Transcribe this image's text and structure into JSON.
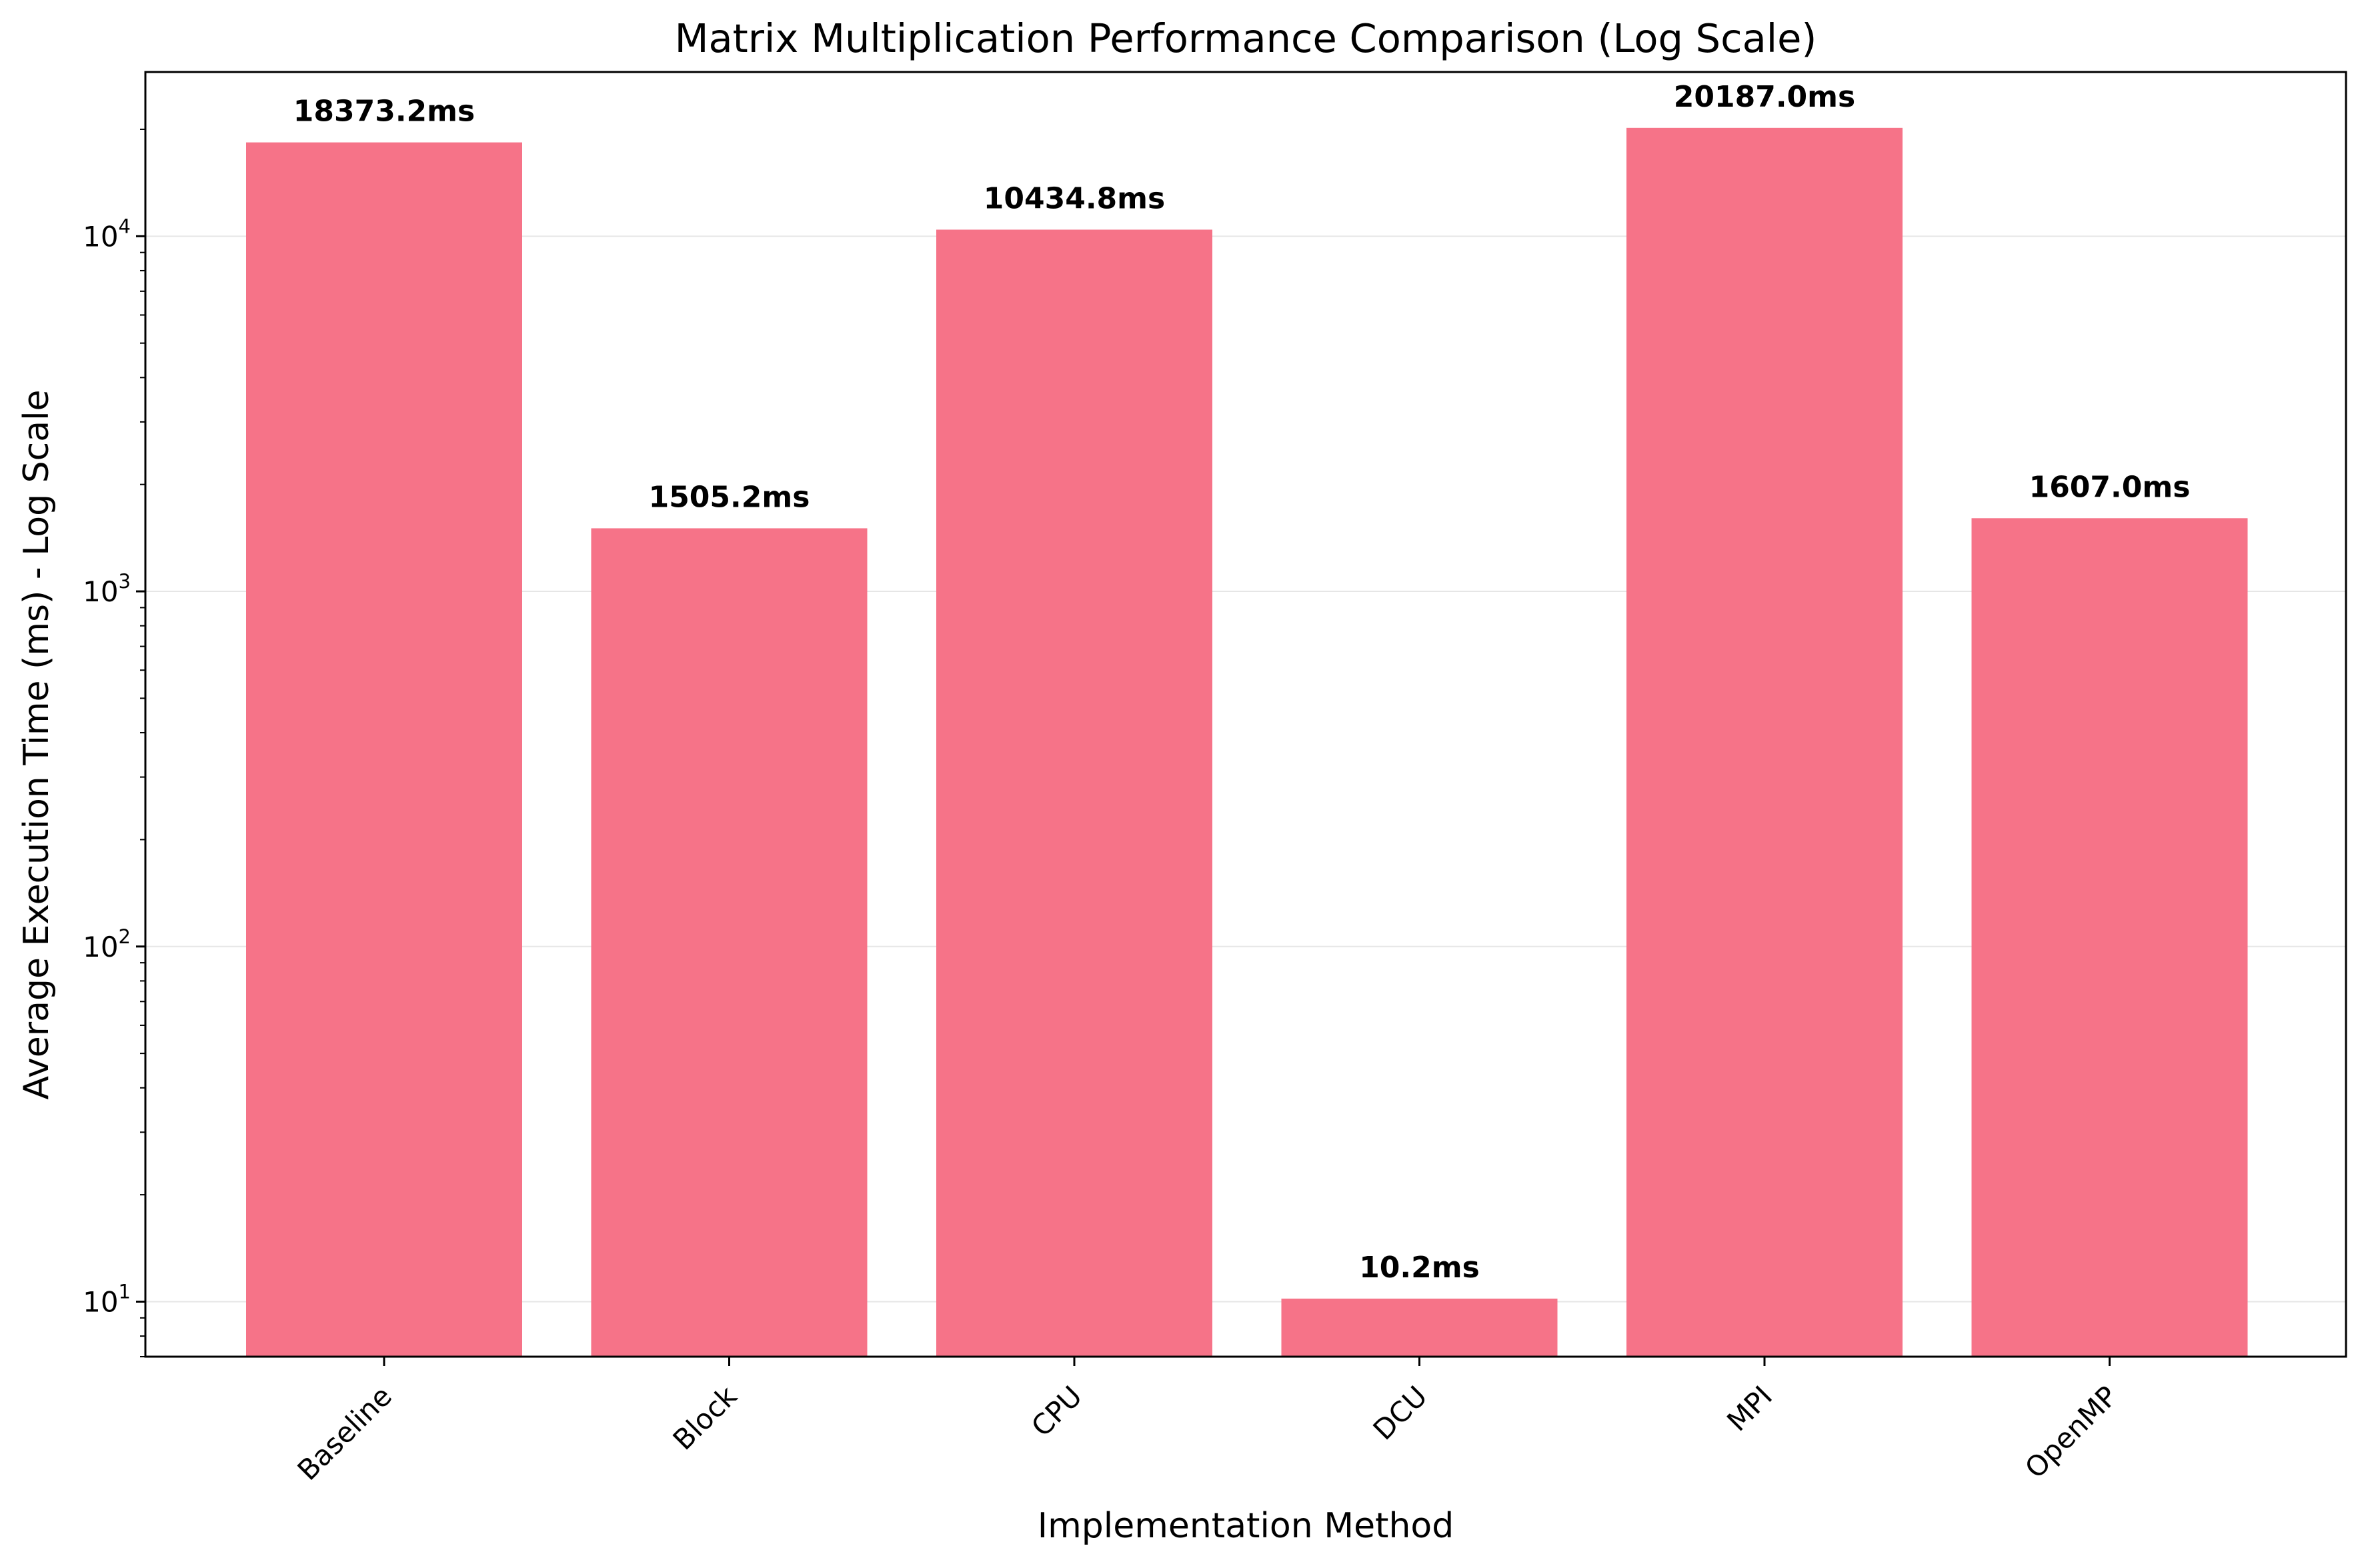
{
  "chart_data": {
    "type": "bar",
    "title": "Matrix Multiplication Performance Comparison (Log Scale)",
    "xlabel": "Implementation Method",
    "ylabel": "Average Execution Time (ms) - Log Scale",
    "yscale": "log",
    "ylim": [
      7,
      29000
    ],
    "grid": "y",
    "bar_color": "#f67388",
    "categories": [
      "Baseline",
      "Block",
      "CPU",
      "DCU",
      "MPI",
      "OpenMP"
    ],
    "values": [
      18373.2,
      1505.2,
      10434.8,
      10.2,
      20187.0,
      1607.0
    ],
    "value_labels": [
      "18373.2ms",
      "1505.2ms",
      "10434.8ms",
      "10.2ms",
      "20187.0ms",
      "1607.0ms"
    ],
    "y_major_ticks": [
      {
        "value": 10,
        "base": "10",
        "exp": "1"
      },
      {
        "value": 100,
        "base": "10",
        "exp": "2"
      },
      {
        "value": 1000,
        "base": "10",
        "exp": "3"
      },
      {
        "value": 10000,
        "base": "10",
        "exp": "4"
      }
    ]
  }
}
